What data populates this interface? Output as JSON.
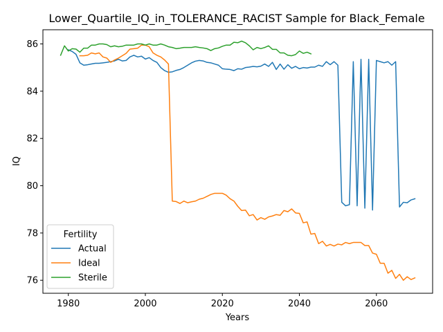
{
  "chart_data": {
    "type": "line",
    "title": "Lower_Quartile_IQ_in_TOLERANCE_RACIST Sample for Black_Female",
    "xlabel": "Years",
    "ylabel": "IQ",
    "xlim": [
      1973.4,
      2074.6
    ],
    "ylim": [
      75.45,
      86.6
    ],
    "xticks": [
      1980,
      2000,
      2020,
      2040,
      2060
    ],
    "yticks": [
      76,
      78,
      80,
      82,
      84,
      86
    ],
    "grid": false,
    "legend": {
      "title": "Fertility",
      "placement": "lower-left"
    },
    "series": [
      {
        "name": "Actual",
        "color": "#1f77b4",
        "x": [
          1980,
          1981,
          1982,
          1983,
          1984,
          1985,
          1986,
          1987,
          1988,
          1989,
          1990,
          1991,
          1992,
          1993,
          1994,
          1995,
          1996,
          1997,
          1998,
          1999,
          2000,
          2001,
          2002,
          2003,
          2004,
          2005,
          2006,
          2007,
          2008,
          2009,
          2010,
          2011,
          2012,
          2013,
          2014,
          2015,
          2016,
          2017,
          2018,
          2019,
          2020,
          2021,
          2022,
          2023,
          2024,
          2025,
          2026,
          2027,
          2028,
          2029,
          2030,
          2031,
          2032,
          2033,
          2034,
          2035,
          2036,
          2037,
          2038,
          2039,
          2040,
          2041,
          2042,
          2043,
          2044,
          2045,
          2046,
          2047,
          2048,
          2049,
          2050,
          2051,
          2052,
          2053,
          2054,
          2055,
          2056,
          2057,
          2058,
          2059,
          2060,
          2061,
          2062,
          2063,
          2064,
          2065,
          2066,
          2067,
          2068,
          2069,
          2070
        ],
        "values": [
          85.75,
          85.68,
          85.56,
          85.2,
          85.1,
          85.12,
          85.15,
          85.18,
          85.18,
          85.2,
          85.22,
          85.25,
          85.28,
          85.35,
          85.28,
          85.3,
          85.45,
          85.52,
          85.45,
          85.48,
          85.36,
          85.42,
          85.3,
          85.22,
          85.0,
          84.87,
          84.8,
          84.82,
          84.88,
          84.92,
          85.0,
          85.1,
          85.2,
          85.27,
          85.3,
          85.28,
          85.22,
          85.2,
          85.15,
          85.1,
          84.95,
          84.93,
          84.92,
          84.87,
          84.95,
          84.93,
          85.0,
          85.02,
          85.05,
          85.03,
          85.06,
          85.15,
          85.05,
          85.22,
          84.92,
          85.15,
          84.93,
          85.12,
          84.97,
          85.05,
          84.95,
          85.0,
          84.98,
          85.02,
          85.02,
          85.1,
          85.05,
          85.25,
          85.12,
          85.25,
          85.1,
          79.3,
          79.15,
          79.2,
          85.25,
          79.15,
          85.35,
          79.05,
          85.35,
          78.97,
          85.3,
          85.25,
          85.2,
          85.25,
          85.1,
          85.25,
          79.1,
          79.3,
          79.28,
          79.4,
          79.45
        ]
      },
      {
        "name": "Ideal",
        "color": "#ff7f0e",
        "x": [
          1983,
          1984,
          1985,
          1986,
          1987,
          1988,
          1989,
          1990,
          1991,
          1992,
          1993,
          1994,
          1995,
          1996,
          1997,
          1998,
          1999,
          2000,
          2001,
          2002,
          2003,
          2004,
          2005,
          2006,
          2007,
          2008,
          2009,
          2010,
          2011,
          2012,
          2013,
          2014,
          2015,
          2016,
          2017,
          2018,
          2019,
          2020,
          2021,
          2022,
          2023,
          2024,
          2025,
          2026,
          2027,
          2028,
          2029,
          2030,
          2031,
          2032,
          2033,
          2034,
          2035,
          2036,
          2037,
          2038,
          2039,
          2040,
          2041,
          2042,
          2043,
          2044,
          2045,
          2046,
          2047,
          2048,
          2049,
          2050,
          2051,
          2052,
          2053,
          2054,
          2055,
          2056,
          2057,
          2058,
          2059,
          2060,
          2061,
          2062,
          2063,
          2064,
          2065,
          2066,
          2067,
          2068,
          2069,
          2070
        ],
        "values": [
          85.5,
          85.5,
          85.52,
          85.62,
          85.58,
          85.62,
          85.45,
          85.4,
          85.22,
          85.32,
          85.4,
          85.5,
          85.6,
          85.78,
          85.8,
          85.82,
          85.95,
          85.95,
          85.88,
          85.62,
          85.52,
          85.45,
          85.32,
          85.15,
          79.35,
          79.33,
          79.25,
          79.35,
          79.28,
          79.32,
          79.35,
          79.43,
          79.47,
          79.55,
          79.63,
          79.68,
          79.68,
          79.68,
          79.6,
          79.45,
          79.35,
          79.13,
          78.95,
          78.97,
          78.73,
          78.78,
          78.55,
          78.65,
          78.58,
          78.68,
          78.72,
          78.78,
          78.75,
          78.95,
          78.9,
          79.02,
          78.85,
          78.83,
          78.43,
          78.47,
          77.95,
          77.98,
          77.55,
          77.65,
          77.45,
          77.52,
          77.45,
          77.53,
          77.5,
          77.6,
          77.55,
          77.6,
          77.6,
          77.6,
          77.47,
          77.47,
          77.15,
          77.1,
          76.72,
          76.72,
          76.3,
          76.42,
          76.08,
          76.25,
          76.0,
          76.15,
          76.03,
          76.1
        ]
      },
      {
        "name": "Sterile",
        "color": "#2ca02c",
        "x": [
          1978,
          1979,
          1980,
          1981,
          1982,
          1983,
          1984,
          1985,
          1986,
          1987,
          1988,
          1989,
          1990,
          1991,
          1992,
          1993,
          1994,
          1995,
          1996,
          1997,
          1998,
          1999,
          2000,
          2001,
          2002,
          2003,
          2004,
          2005,
          2006,
          2007,
          2008,
          2009,
          2010,
          2011,
          2012,
          2013,
          2014,
          2015,
          2016,
          2017,
          2018,
          2019,
          2020,
          2021,
          2022,
          2023,
          2024,
          2025,
          2026,
          2027,
          2028,
          2029,
          2030,
          2031,
          2032,
          2033,
          2034,
          2035,
          2036,
          2037,
          2038,
          2039,
          2040,
          2041,
          2042,
          2043
        ],
        "values": [
          85.52,
          85.92,
          85.7,
          85.8,
          85.78,
          85.65,
          85.82,
          85.82,
          85.95,
          85.95,
          86.0,
          86.0,
          85.97,
          85.88,
          85.92,
          85.88,
          85.9,
          85.95,
          85.95,
          85.95,
          86.0,
          86.0,
          85.95,
          86.0,
          85.95,
          85.95,
          86.0,
          85.95,
          85.88,
          85.85,
          85.8,
          85.82,
          85.85,
          85.85,
          85.85,
          85.88,
          85.85,
          85.83,
          85.8,
          85.72,
          85.8,
          85.83,
          85.9,
          85.95,
          85.95,
          86.07,
          86.05,
          86.12,
          86.05,
          85.92,
          85.75,
          85.85,
          85.8,
          85.85,
          85.92,
          85.77,
          85.77,
          85.62,
          85.62,
          85.52,
          85.5,
          85.55,
          85.7,
          85.6,
          85.65,
          85.58
        ]
      }
    ]
  }
}
